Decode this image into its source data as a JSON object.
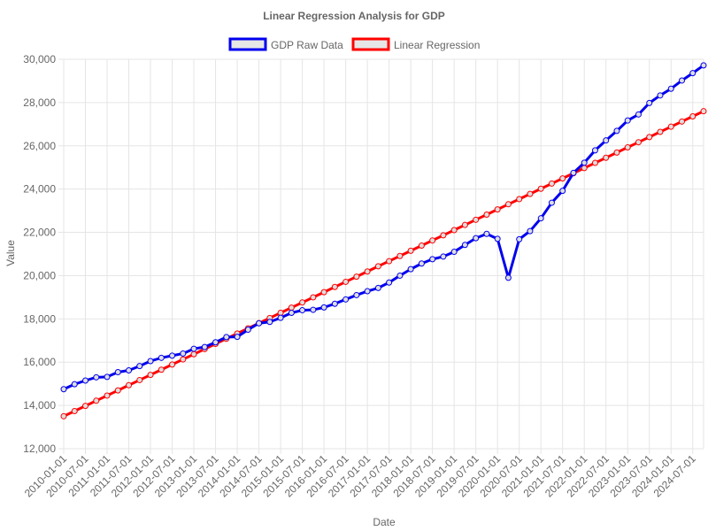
{
  "chart_data": {
    "type": "line",
    "title": "Linear Regression Analysis for GDP",
    "xlabel": "Date",
    "ylabel": "Value",
    "ylim": [
      12000,
      30000
    ],
    "y_ticks": [
      "12,000",
      "14,000",
      "16,000",
      "18,000",
      "20,000",
      "22,000",
      "24,000",
      "26,000",
      "28,000",
      "30,000"
    ],
    "y_tick_values": [
      12000,
      14000,
      16000,
      18000,
      20000,
      22000,
      24000,
      26000,
      28000,
      30000
    ],
    "x_tick_labels": [
      "2010-01-01",
      "2010-07-01",
      "2011-01-01",
      "2011-07-01",
      "2012-01-01",
      "2012-07-01",
      "2013-01-01",
      "2013-07-01",
      "2014-01-01",
      "2014-07-01",
      "2015-01-01",
      "2015-07-01",
      "2016-01-01",
      "2016-07-01",
      "2017-01-01",
      "2017-07-01",
      "2018-01-01",
      "2018-07-01",
      "2019-01-01",
      "2019-07-01",
      "2020-01-01",
      "2020-07-01",
      "2021-01-01",
      "2021-07-01",
      "2022-01-01",
      "2022-07-01",
      "2023-01-01",
      "2023-07-01",
      "2024-01-01",
      "2024-07-01"
    ],
    "x": [
      "2010-01-01",
      "2010-04-01",
      "2010-07-01",
      "2010-10-01",
      "2011-01-01",
      "2011-04-01",
      "2011-07-01",
      "2011-10-01",
      "2012-01-01",
      "2012-04-01",
      "2012-07-01",
      "2012-10-01",
      "2013-01-01",
      "2013-04-01",
      "2013-07-01",
      "2013-10-01",
      "2014-01-01",
      "2014-04-01",
      "2014-07-01",
      "2014-10-01",
      "2015-01-01",
      "2015-04-01",
      "2015-07-01",
      "2015-10-01",
      "2016-01-01",
      "2016-04-01",
      "2016-07-01",
      "2016-10-01",
      "2017-01-01",
      "2017-04-01",
      "2017-07-01",
      "2017-10-01",
      "2018-01-01",
      "2018-04-01",
      "2018-07-01",
      "2018-10-01",
      "2019-01-01",
      "2019-04-01",
      "2019-07-01",
      "2019-10-01",
      "2020-01-01",
      "2020-04-01",
      "2020-07-01",
      "2020-10-01",
      "2021-01-01",
      "2021-04-01",
      "2021-07-01",
      "2021-10-01",
      "2022-01-01",
      "2022-04-01",
      "2022-07-01",
      "2022-10-01",
      "2023-01-01",
      "2023-04-01",
      "2023-07-01",
      "2023-10-01",
      "2024-01-01",
      "2024-04-01",
      "2024-07-01",
      "2024-10-01"
    ],
    "series": [
      {
        "name": "GDP Raw Data",
        "color": "#0000ee",
        "values": [
          14750,
          14980,
          15150,
          15300,
          15320,
          15540,
          15620,
          15820,
          16050,
          16200,
          16300,
          16400,
          16620,
          16700,
          16920,
          17160,
          17170,
          17500,
          17800,
          17860,
          18050,
          18280,
          18400,
          18420,
          18530,
          18700,
          18900,
          19100,
          19280,
          19430,
          19680,
          20000,
          20300,
          20560,
          20760,
          20880,
          21100,
          21420,
          21730,
          21930,
          21700,
          19900,
          21680,
          22060,
          22650,
          23370,
          23920,
          24750,
          25220,
          25790,
          26250,
          26690,
          27170,
          27450,
          27980,
          28330,
          28640,
          29020,
          29360,
          29720
        ]
      },
      {
        "name": "Linear Regression",
        "color": "#ff0000",
        "values": [
          13500,
          13739,
          13978,
          14217,
          14456,
          14695,
          14934,
          15173,
          15412,
          15651,
          15890,
          16129,
          16368,
          16607,
          16846,
          17085,
          17324,
          17563,
          17802,
          18041,
          18280,
          18519,
          18758,
          18997,
          19236,
          19475,
          19714,
          19953,
          20192,
          20431,
          20670,
          20909,
          21148,
          21387,
          21626,
          21865,
          22104,
          22343,
          22582,
          22821,
          23060,
          23299,
          23538,
          23777,
          24016,
          24255,
          24494,
          24733,
          24972,
          25211,
          25450,
          25689,
          25928,
          26167,
          26406,
          26645,
          26884,
          27123,
          27362,
          27600
        ]
      }
    ],
    "grid": true,
    "legend_position": "top-center"
  }
}
